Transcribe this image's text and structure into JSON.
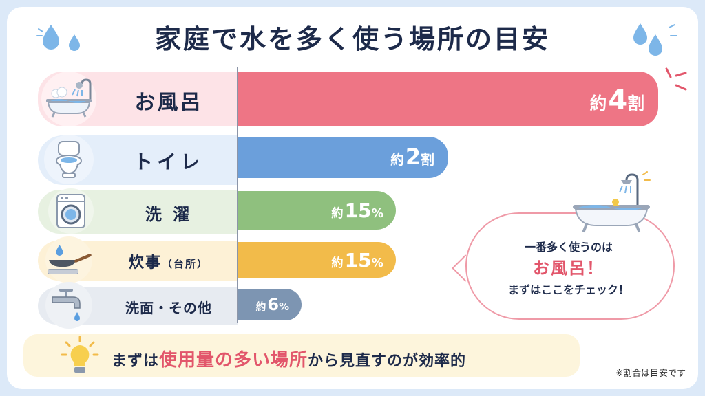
{
  "title": "家庭で水を多く使う場所の目安",
  "chart_data": {
    "type": "bar",
    "orientation": "horizontal",
    "unit": "%",
    "categories": [
      "お風呂",
      "トイレ",
      "洗濯",
      "炊事（台所）",
      "洗面・その他"
    ],
    "values": [
      40,
      20,
      15,
      15,
      6
    ],
    "data_labels": [
      "約4割",
      "約2割",
      "約15%",
      "約15%",
      "約6%"
    ],
    "colors": [
      "#ee7585",
      "#6b9fdb",
      "#8fc07e",
      "#f2bb4a",
      "#7d95b2"
    ]
  },
  "rows": [
    {
      "label_main": "お風呂",
      "label_sub": "",
      "prefix": "約",
      "num": "4",
      "suffix": "割",
      "icon": "bathtub-icon"
    },
    {
      "label_main": "トイレ",
      "label_sub": "",
      "prefix": "約",
      "num": "2",
      "suffix": "割",
      "icon": "toilet-icon"
    },
    {
      "label_main": "洗 濯",
      "label_sub": "",
      "prefix": "約",
      "num": "15",
      "suffix": "%",
      "icon": "washing-machine-icon"
    },
    {
      "label_main": "炊事",
      "label_sub": "（台所）",
      "prefix": "約",
      "num": "15",
      "suffix": "%",
      "icon": "frying-pan-icon"
    },
    {
      "label_main": "洗面・その他",
      "label_sub": "",
      "prefix": "約",
      "num": "6",
      "suffix": "%",
      "icon": "faucet-icon"
    }
  ],
  "callout": {
    "line1": "一番多く使うのは",
    "line2": "お風呂！",
    "line3": "まずはここをチェック！",
    "icon": "bathtub-shower-icon"
  },
  "tip": {
    "pre": "まずは",
    "highlight": "使用量の多い場所",
    "post": "から見直すのが効率的",
    "icon": "lightbulb-icon"
  },
  "note": "※割合は目安です"
}
